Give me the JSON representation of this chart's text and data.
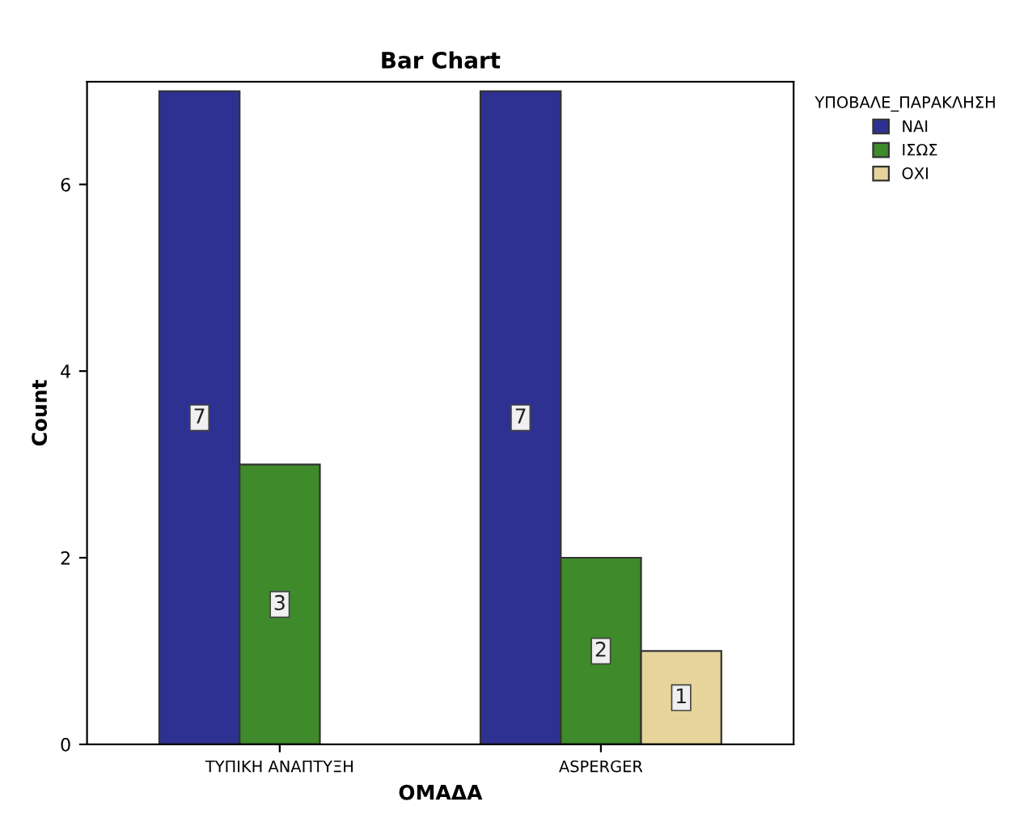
{
  "chart_data": {
    "type": "bar",
    "title": "Bar Chart",
    "xlabel": "ΟΜΑΔΑ",
    "ylabel": "Count",
    "legend_title": "ΥΠΟΒΑΛΕ_ΠΑΡΑΚΛΗΣΗ",
    "categories": [
      "ΤΥΠΙΚΗ ΑΝΑΠΤΥΞΗ",
      "ASPERGER"
    ],
    "series": [
      {
        "name": "ΝΑΙ",
        "color": "#2e3192",
        "values": [
          7,
          7
        ]
      },
      {
        "name": "ΙΣΩΣ",
        "color": "#3f8a2a",
        "values": [
          3,
          2
        ]
      },
      {
        "name": "ΟΧΙ",
        "color": "#e6d49a",
        "values": [
          null,
          1
        ]
      }
    ],
    "ylim": [
      0,
      7.1
    ],
    "yticks": [
      0,
      2,
      4,
      6
    ],
    "grid": false,
    "legend": "top right",
    "data_labels": true
  }
}
